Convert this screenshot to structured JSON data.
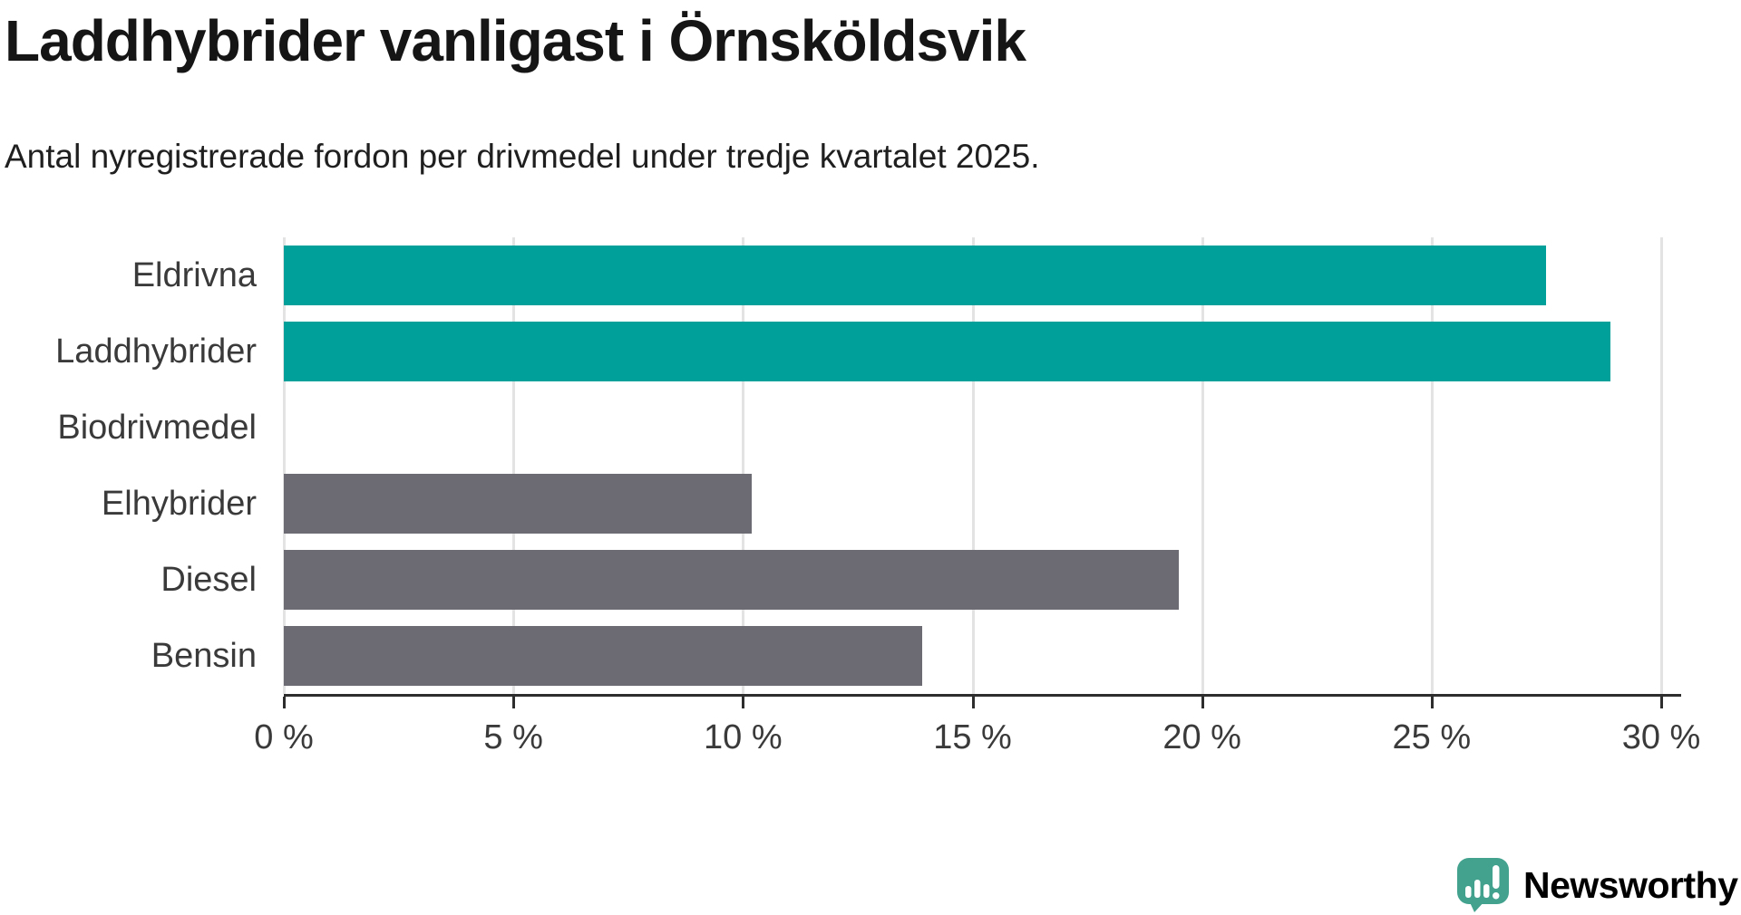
{
  "header": {
    "title": "Laddhybrider vanligast i Örnsköldsvik",
    "subtitle": "Antal nyregistrerade fordon per drivmedel under tredje kvartalet 2025."
  },
  "chart_data": {
    "type": "bar",
    "orientation": "horizontal",
    "title": "Laddhybrider vanligast i Örnsköldsvik",
    "subtitle": "Antal nyregistrerade fordon per drivmedel under tredje kvartalet 2025.",
    "categories": [
      "Eldrivna",
      "Laddhybrider",
      "Biodrivmedel",
      "Elhybrider",
      "Diesel",
      "Bensin"
    ],
    "values": [
      27.5,
      28.9,
      0,
      10.2,
      19.5,
      13.9
    ],
    "unit": "%",
    "bar_colors": [
      "#00a09a",
      "#00a09a",
      "#00a09a",
      "#6c6b73",
      "#6c6b73",
      "#6c6b73"
    ],
    "xlim": [
      0,
      30
    ],
    "x_tick_values": [
      0,
      5,
      10,
      15,
      20,
      25,
      30
    ],
    "x_tick_labels": [
      "0 %",
      "5 %",
      "10 %",
      "15 %",
      "20 %",
      "25 %",
      "30 %"
    ],
    "grid": "vertical",
    "legend": "none"
  },
  "colors": {
    "teal_bar": "#00a09a",
    "gray_bar": "#6c6b73",
    "gridline": "#e3e3e3",
    "axis": "#2d2d2d",
    "text": "#3a3a3a",
    "logo": "#43a28e"
  },
  "logo": {
    "text": "Newsworthy",
    "icon": "newsworthy-chart-bubble-icon"
  }
}
